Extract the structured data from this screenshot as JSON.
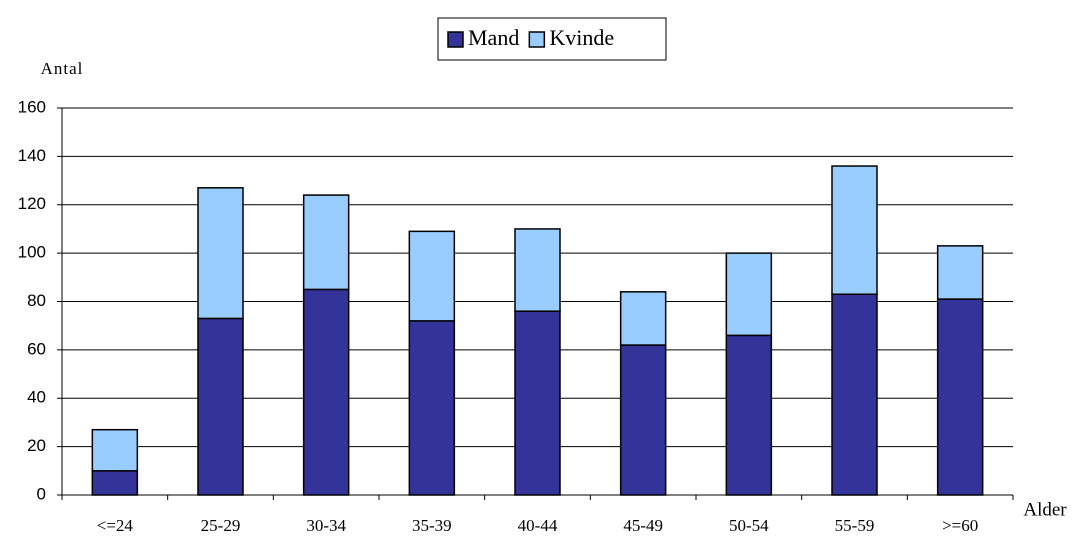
{
  "chart_data": {
    "type": "bar",
    "stacked": true,
    "y_label": "Antal",
    "x_label": "Alder",
    "categories": [
      "<=24",
      "25-29",
      "30-34",
      "35-39",
      "40-44",
      "45-49",
      "50-54",
      "55-59",
      ">=60"
    ],
    "series": [
      {
        "name": "Mand",
        "color": "#333399",
        "values": [
          10,
          73,
          85,
          72,
          76,
          62,
          66,
          83,
          81
        ]
      },
      {
        "name": "Kvinde",
        "color": "#99ccff",
        "values": [
          17,
          54,
          39,
          37,
          34,
          22,
          34,
          53,
          22
        ]
      }
    ],
    "ylim": [
      0,
      160
    ],
    "yticks": [
      0,
      20,
      40,
      60,
      80,
      100,
      120,
      140,
      160
    ],
    "grid": true
  }
}
